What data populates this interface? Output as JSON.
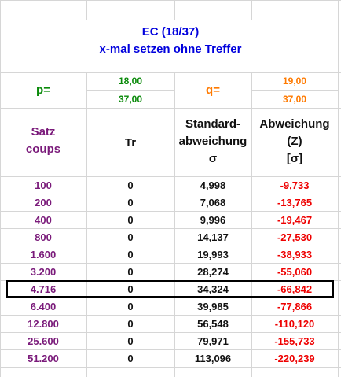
{
  "title": {
    "line1": "EC (18/37)",
    "line2": "x-mal setzen ohne Treffer"
  },
  "params": {
    "p_label": "p=",
    "p_num": "18,00",
    "p_den": "37,00",
    "q_label": "q=",
    "q_num": "19,00",
    "q_den": "37,00"
  },
  "headers": {
    "satz": "Satz",
    "coups": "coups",
    "tr": "Tr",
    "std1": "Standard-",
    "std2": "abweichung",
    "std3": "σ",
    "abw1": "Abweichung",
    "abw2": "(Z)",
    "abw3": "[σ]"
  },
  "rows": [
    {
      "satz": "100",
      "tr": "0",
      "std": "4,998",
      "abw": "-9,733"
    },
    {
      "satz": "200",
      "tr": "0",
      "std": "7,068",
      "abw": "-13,765"
    },
    {
      "satz": "400",
      "tr": "0",
      "std": "9,996",
      "abw": "-19,467"
    },
    {
      "satz": "800",
      "tr": "0",
      "std": "14,137",
      "abw": "-27,530"
    },
    {
      "satz": "1.600",
      "tr": "0",
      "std": "19,993",
      "abw": "-38,933"
    },
    {
      "satz": "3.200",
      "tr": "0",
      "std": "28,274",
      "abw": "-55,060"
    },
    {
      "satz": "4.716",
      "tr": "0",
      "std": "34,324",
      "abw": "-66,842"
    },
    {
      "satz": "6.400",
      "tr": "0",
      "std": "39,985",
      "abw": "-77,866"
    },
    {
      "satz": "12.800",
      "tr": "0",
      "std": "56,548",
      "abw": "-110,120"
    },
    {
      "satz": "25.600",
      "tr": "0",
      "std": "79,971",
      "abw": "-155,733"
    },
    {
      "satz": "51.200",
      "tr": "0",
      "std": "113,096",
      "abw": "-220,239"
    }
  ],
  "colors": {
    "title": "#0000dd",
    "p": "#0a8a0a",
    "q": "#ff7a00",
    "satz": "#7a1a7a",
    "deviation": "#ee0000"
  }
}
